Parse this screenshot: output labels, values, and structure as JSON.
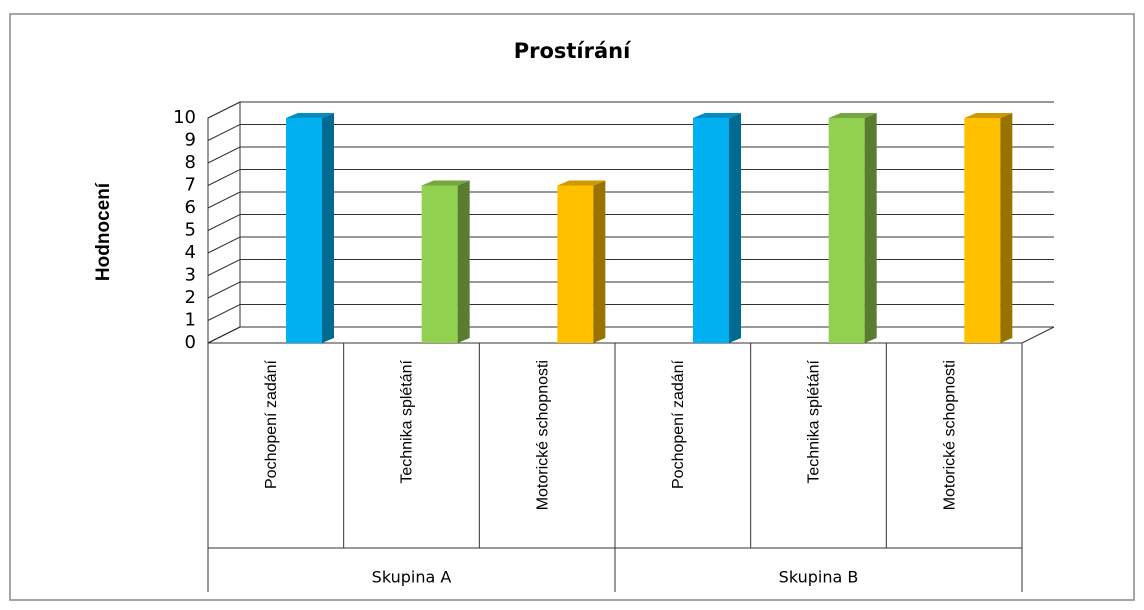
{
  "chart_data": {
    "type": "bar3d",
    "title": "Prostírání",
    "y_label": "Hodnocení",
    "categories": [
      "Pochopení zadání",
      "Technika splétání",
      "Motorické schopnosti",
      "Pochopení zadání",
      "Technika splétání",
      "Motorické schopnosti"
    ],
    "groups": [
      "Skupina A",
      "Skupina B"
    ],
    "values": [
      10,
      7,
      7,
      10,
      10,
      10
    ],
    "colors": [
      "#00b0f0",
      "#92d050",
      "#ffc000",
      "#00b0f0",
      "#92d050",
      "#ffc000"
    ],
    "ylim": [
      0,
      10
    ],
    "yticks": [
      0,
      1,
      2,
      3,
      4,
      5,
      6,
      7,
      8,
      9,
      10
    ],
    "grid": true
  }
}
